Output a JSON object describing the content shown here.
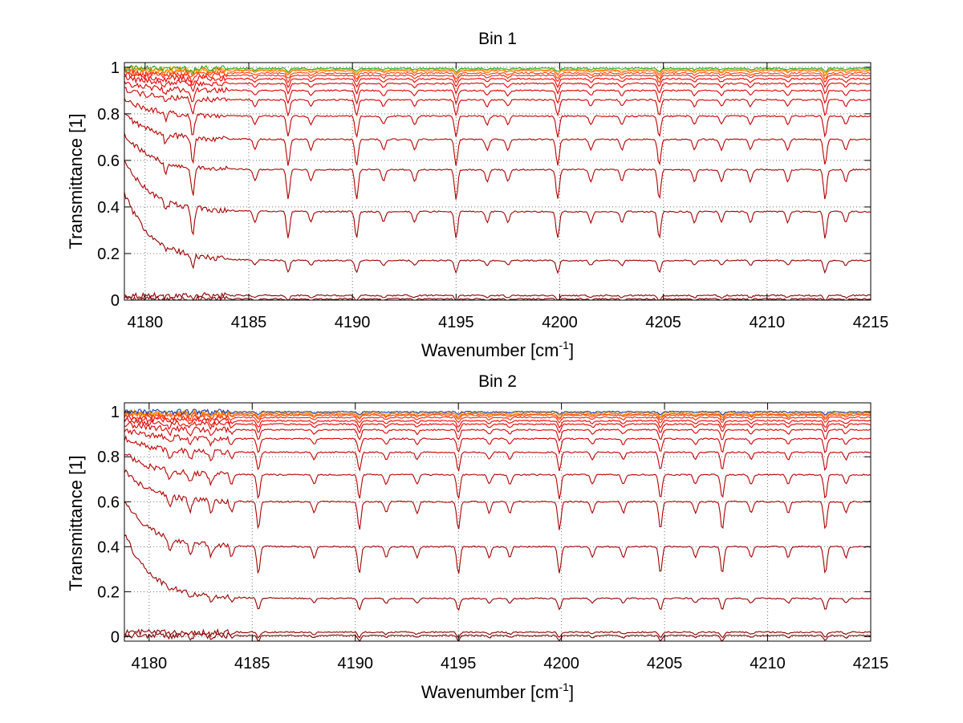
{
  "chart_data": [
    {
      "type": "line",
      "title": "Bin 1",
      "xlabel": "Wavenumber [cm",
      "xlabel_sup": "-1",
      "xlabel_tail": "]",
      "ylabel": "Transmittance [1]",
      "xlim": [
        4179,
        4215
      ],
      "ylim": [
        0,
        1.02
      ],
      "xticks": [
        4180,
        4185,
        4190,
        4195,
        4200,
        4205,
        4210,
        4215
      ],
      "xtick_labels": [
        "4180",
        "4185",
        "4190",
        "4195",
        "4200",
        "4205",
        "4210",
        "4215"
      ],
      "yticks": [
        0,
        0.2,
        0.4,
        0.6,
        0.8,
        1
      ],
      "ytick_labels": [
        "0",
        "0.2",
        "0.4",
        "0.6",
        "0.8",
        "1"
      ],
      "grid": true,
      "main_lines": [
        4182.3,
        4186.9,
        4190.2,
        4195.0,
        4199.9,
        4204.8,
        4212.8
      ],
      "minor_lines": [
        4181.0,
        4185.3,
        4188.0,
        4191.5,
        4193.0,
        4196.5,
        4197.5,
        4201.5,
        4203.0,
        4206.5,
        4207.8,
        4209.2,
        4211.0,
        4213.8
      ],
      "series_baselines": [
        0.005,
        0.02,
        0.17,
        0.38,
        0.56,
        0.69,
        0.79,
        0.86,
        0.9,
        0.93,
        0.95,
        0.965,
        0.975,
        0.985,
        0.99,
        0.995
      ],
      "series_colors": [
        "#800000",
        "#8b0000",
        "#960000",
        "#a10000",
        "#ac0000",
        "#b70000",
        "#c20000",
        "#cd0000",
        "#d80000",
        "#e30000",
        "#ee0000",
        "#ff2000",
        "#ff4000",
        "#ff6000",
        "#ffa000",
        "#22aa22"
      ]
    },
    {
      "type": "line",
      "title": "Bin 2",
      "xlabel": "Wavenumber [cm",
      "xlabel_sup": "-1",
      "xlabel_tail": "]",
      "ylabel": "Transmittance [1]",
      "xlim": [
        4178.8,
        4215
      ],
      "ylim": [
        -0.02,
        1.04
      ],
      "xticks": [
        4180,
        4185,
        4190,
        4195,
        4200,
        4205,
        4210,
        4215
      ],
      "xtick_labels": [
        "4180",
        "4185",
        "4190",
        "4195",
        "4200",
        "4205",
        "4210",
        "4215"
      ],
      "yticks": [
        0,
        0.2,
        0.4,
        0.6,
        0.8,
        1
      ],
      "ytick_labels": [
        "0",
        "0.2",
        "0.4",
        "0.6",
        "0.8",
        "1"
      ],
      "grid": true,
      "main_lines": [
        4185.3,
        4190.2,
        4195.0,
        4199.9,
        4204.8,
        4207.8,
        4212.8
      ],
      "minor_lines": [
        4181.0,
        4182.0,
        4183.0,
        4184.0,
        4188.0,
        4191.5,
        4193.0,
        4196.5,
        4197.5,
        4201.5,
        4203.0,
        4206.5,
        4209.2,
        4211.0,
        4213.8
      ],
      "series_baselines": [
        0.005,
        0.02,
        0.17,
        0.4,
        0.6,
        0.72,
        0.82,
        0.88,
        0.92,
        0.945,
        0.96,
        0.975,
        0.985,
        0.99,
        0.995,
        1.0
      ],
      "series_colors": [
        "#800000",
        "#8b0000",
        "#960000",
        "#a10000",
        "#ac0000",
        "#b70000",
        "#c20000",
        "#cd0000",
        "#d80000",
        "#e30000",
        "#ee0000",
        "#ff2000",
        "#ff4000",
        "#ff6000",
        "#ffa000",
        "#1f3fbf"
      ]
    }
  ]
}
